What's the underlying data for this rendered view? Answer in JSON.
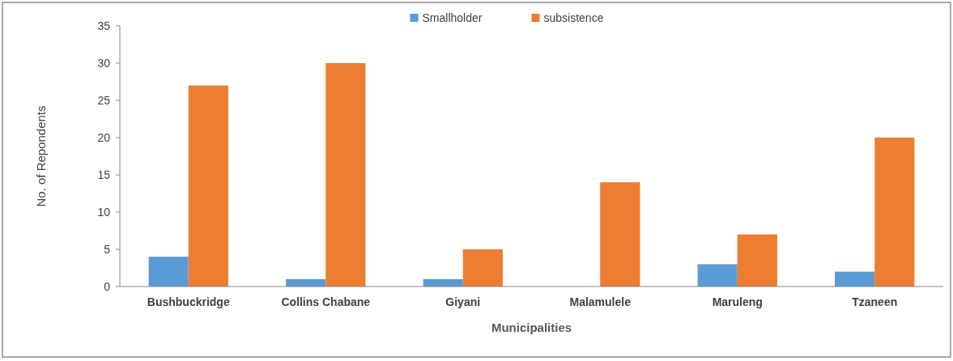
{
  "chart_data": {
    "type": "bar",
    "xlabel": "Municipalities",
    "ylabel": "No. of Repondents",
    "categories": [
      "Bushbuckridge",
      "Collins Chabane",
      "Giyani",
      "Malamulele",
      "Maruleng",
      "Tzaneen"
    ],
    "series": [
      {
        "name": "Smallholder",
        "color": "#5b9bd5",
        "values": [
          4,
          1,
          1,
          0,
          3,
          2
        ]
      },
      {
        "name": "subsistence",
        "color": "#ed7d31",
        "values": [
          27,
          30,
          5,
          14,
          7,
          20
        ]
      }
    ],
    "ylim": [
      0,
      35
    ],
    "yticks": [
      0,
      5,
      10,
      15,
      20,
      25,
      30,
      35
    ],
    "grid": false,
    "legend": "top"
  }
}
